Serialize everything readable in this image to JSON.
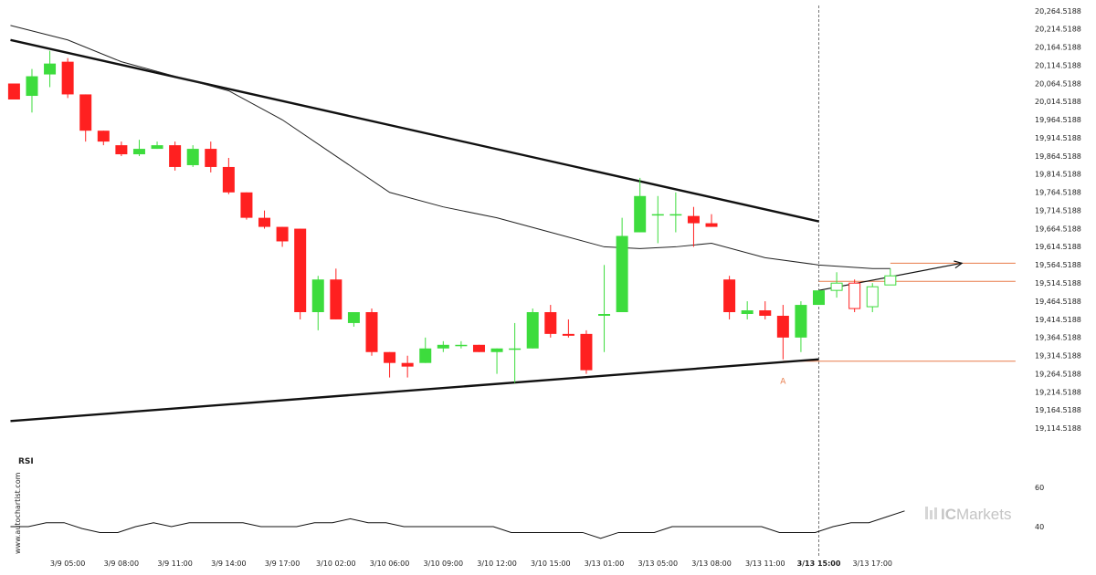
{
  "chart_data": {
    "type": "candlestick",
    "y_ticks": [
      "20,264.5188",
      "20,214.5188",
      "20,164.5188",
      "20,114.5188",
      "20,064.5188",
      "20,014.5188",
      "19,964.5188",
      "19,914.5188",
      "19,864.5188",
      "19,814.5188",
      "19,764.5188",
      "19,714.5188",
      "19,664.5188",
      "19,614.5188",
      "19,564.5188",
      "19,514.5188",
      "19,464.5188",
      "19,414.5188",
      "19,364.5188",
      "19,314.5188",
      "19,264.5188",
      "19,214.5188",
      "19,164.5188",
      "19,114.5188"
    ],
    "ylim": [
      19092,
      20274
    ],
    "x_ticks": [
      {
        "label": "3/9 05:00",
        "i": 3
      },
      {
        "label": "3/9 08:00",
        "i": 6
      },
      {
        "label": "3/9 11:00",
        "i": 9
      },
      {
        "label": "3/9 14:00",
        "i": 12
      },
      {
        "label": "3/9 17:00",
        "i": 15
      },
      {
        "label": "3/10 02:00",
        "i": 18
      },
      {
        "label": "3/10 06:00",
        "i": 21
      },
      {
        "label": "3/10 09:00",
        "i": 24
      },
      {
        "label": "3/10 12:00",
        "i": 27
      },
      {
        "label": "3/10 15:00",
        "i": 30
      },
      {
        "label": "3/13 01:00",
        "i": 33
      },
      {
        "label": "3/13 05:00",
        "i": 36
      },
      {
        "label": "3/13 08:00",
        "i": 39
      },
      {
        "label": "3/13 11:00",
        "i": 42
      },
      {
        "label": "3/13 15:00",
        "i": 45,
        "bold": true
      },
      {
        "label": "3/13 17:00",
        "i": 48
      }
    ],
    "candles": [
      {
        "o": 20064,
        "h": 20064,
        "c": 20020,
        "l": 20020
      },
      {
        "o": 20030,
        "h": 20104,
        "c": 20084,
        "l": 19984
      },
      {
        "o": 20089,
        "h": 20154,
        "c": 20119,
        "l": 20054
      },
      {
        "o": 20124,
        "h": 20134,
        "c": 20034,
        "l": 20024
      },
      {
        "o": 20034,
        "h": 20034,
        "c": 19934,
        "l": 19904
      },
      {
        "o": 19934,
        "h": 19934,
        "c": 19904,
        "l": 19894
      },
      {
        "o": 19894,
        "h": 19904,
        "c": 19869,
        "l": 19864
      },
      {
        "o": 19869,
        "h": 19909,
        "c": 19884,
        "l": 19864
      },
      {
        "o": 19884,
        "h": 19904,
        "c": 19894,
        "l": 19884
      },
      {
        "o": 19894,
        "h": 19904,
        "c": 19834,
        "l": 19824
      },
      {
        "o": 19839,
        "h": 19894,
        "c": 19884,
        "l": 19834
      },
      {
        "o": 19884,
        "h": 19904,
        "c": 19834,
        "l": 19819
      },
      {
        "o": 19834,
        "h": 19859,
        "c": 19764,
        "l": 19759
      },
      {
        "o": 19764,
        "h": 19764,
        "c": 19694,
        "l": 19689
      },
      {
        "o": 19694,
        "h": 19714,
        "c": 19669,
        "l": 19664
      },
      {
        "o": 19669,
        "h": 19669,
        "c": 19629,
        "l": 19614
      },
      {
        "o": 19664,
        "h": 19664,
        "c": 19434,
        "l": 19414
      },
      {
        "o": 19434,
        "h": 19534,
        "c": 19524,
        "l": 19384
      },
      {
        "o": 19524,
        "h": 19554,
        "c": 19414,
        "l": 19414
      },
      {
        "o": 19404,
        "h": 19434,
        "c": 19434,
        "l": 19394
      },
      {
        "o": 19434,
        "h": 19444,
        "c": 19324,
        "l": 19314
      },
      {
        "o": 19324,
        "h": 19324,
        "c": 19294,
        "l": 19254
      },
      {
        "o": 19294,
        "h": 19314,
        "c": 19284,
        "l": 19254
      },
      {
        "o": 19294,
        "h": 19364,
        "c": 19334,
        "l": 19294
      },
      {
        "o": 19334,
        "h": 19354,
        "c": 19344,
        "l": 19324
      },
      {
        "o": 19344,
        "h": 19354,
        "c": 19344,
        "l": 19334
      },
      {
        "o": 19344,
        "h": 19344,
        "c": 19324,
        "l": 19324
      },
      {
        "o": 19324,
        "h": 19334,
        "c": 19334,
        "l": 19264
      },
      {
        "o": 19334,
        "h": 19404,
        "c": 19334,
        "l": 19239
      },
      {
        "o": 19334,
        "h": 19444,
        "c": 19434,
        "l": 19334
      },
      {
        "o": 19434,
        "h": 19454,
        "c": 19374,
        "l": 19364
      },
      {
        "o": 19374,
        "h": 19414,
        "c": 19369,
        "l": 19364
      },
      {
        "o": 19374,
        "h": 19384,
        "c": 19274,
        "l": 19264
      },
      {
        "o": 19424,
        "h": 19564,
        "c": 19429,
        "l": 19324
      },
      {
        "o": 19434,
        "h": 19694,
        "c": 19644,
        "l": 19434
      },
      {
        "o": 19654,
        "h": 19804,
        "c": 19754,
        "l": 19654
      },
      {
        "o": 19704,
        "h": 19754,
        "c": 19704,
        "l": 19624
      },
      {
        "o": 19704,
        "h": 19764,
        "c": 19704,
        "l": 19654
      },
      {
        "o": 19699,
        "h": 19724,
        "c": 19679,
        "l": 19614
      },
      {
        "o": 19679,
        "h": 19704,
        "c": 19669,
        "l": 19669
      },
      {
        "o": 19524,
        "h": 19534,
        "c": 19434,
        "l": 19414
      },
      {
        "o": 19429,
        "h": 19464,
        "c": 19439,
        "l": 19414
      },
      {
        "o": 19439,
        "h": 19464,
        "c": 19424,
        "l": 19414
      },
      {
        "o": 19424,
        "h": 19454,
        "c": 19364,
        "l": 19304
      },
      {
        "o": 19364,
        "h": 19464,
        "c": 19454,
        "l": 19324
      },
      {
        "o": 19454,
        "h": 19494,
        "c": 19494,
        "l": 19454
      }
    ],
    "hollow_candles": [
      {
        "o": 19494,
        "h": 19544,
        "c": 19514,
        "l": 19474
      },
      {
        "o": 19514,
        "h": 19524,
        "c": 19444,
        "l": 19434
      },
      {
        "o": 19449,
        "h": 19514,
        "c": 19504,
        "l": 19434
      },
      {
        "o": 19509,
        "h": 19554,
        "c": 19534,
        "l": 19509
      }
    ],
    "moving_average": [
      {
        "i": -0.2,
        "v": 20224
      },
      {
        "i": 3,
        "v": 20184
      },
      {
        "i": 6,
        "v": 20124
      },
      {
        "i": 9,
        "v": 20084
      },
      {
        "i": 12,
        "v": 20044
      },
      {
        "i": 15,
        "v": 19964
      },
      {
        "i": 18,
        "v": 19864
      },
      {
        "i": 21,
        "v": 19764
      },
      {
        "i": 24,
        "v": 19724
      },
      {
        "i": 27,
        "v": 19694
      },
      {
        "i": 30,
        "v": 19654
      },
      {
        "i": 33,
        "v": 19614
      },
      {
        "i": 35,
        "v": 19609
      },
      {
        "i": 37,
        "v": 19614
      },
      {
        "i": 39,
        "v": 19624
      },
      {
        "i": 42,
        "v": 19584
      },
      {
        "i": 45,
        "v": 19564
      },
      {
        "i": 48,
        "v": 19554
      },
      {
        "i": 49,
        "v": 19554
      }
    ],
    "trendlines": [
      {
        "from": {
          "i": -0.2,
          "v": 20184
        },
        "to": {
          "i": 45,
          "v": 19684
        }
      },
      {
        "from": {
          "i": -0.2,
          "v": 19134
        },
        "to": {
          "i": 45,
          "v": 19304
        }
      }
    ],
    "forecast_arrow": {
      "from": {
        "i": 45,
        "v": 19494
      },
      "to": {
        "i": 53,
        "v": 19569
      }
    },
    "levels": [
      {
        "v": 19569,
        "from": 49,
        "to": 56
      },
      {
        "v": 19519,
        "from": 45,
        "to": 56
      },
      {
        "v": 19299,
        "from": 43,
        "to": 56
      }
    ],
    "forecast_line_i": 45,
    "point_label": {
      "text": "A",
      "i": 43,
      "v": 19264
    },
    "rsi": {
      "label": "RSI",
      "y_ticks": [
        "60",
        "40"
      ],
      "ylim": [
        30,
        75
      ],
      "values": [
        40,
        40,
        42,
        42,
        39,
        37,
        37,
        40,
        42,
        40,
        42,
        42,
        42,
        42,
        40,
        40,
        40,
        42,
        42,
        44,
        42,
        42,
        40,
        40,
        40,
        40,
        40,
        40,
        37,
        37,
        37,
        37,
        37,
        34,
        37,
        37,
        37,
        40,
        40,
        40,
        40,
        40,
        40,
        37,
        37,
        37,
        40,
        42,
        42,
        45,
        48
      ]
    }
  },
  "sidebar_text": "www.autochartist.com",
  "brand": {
    "prefix": "IC",
    "suffix": "Markets"
  },
  "colors": {
    "up": "#3ddc3d",
    "down": "#ff2020",
    "level": "#e87b4a",
    "line": "#111111"
  }
}
